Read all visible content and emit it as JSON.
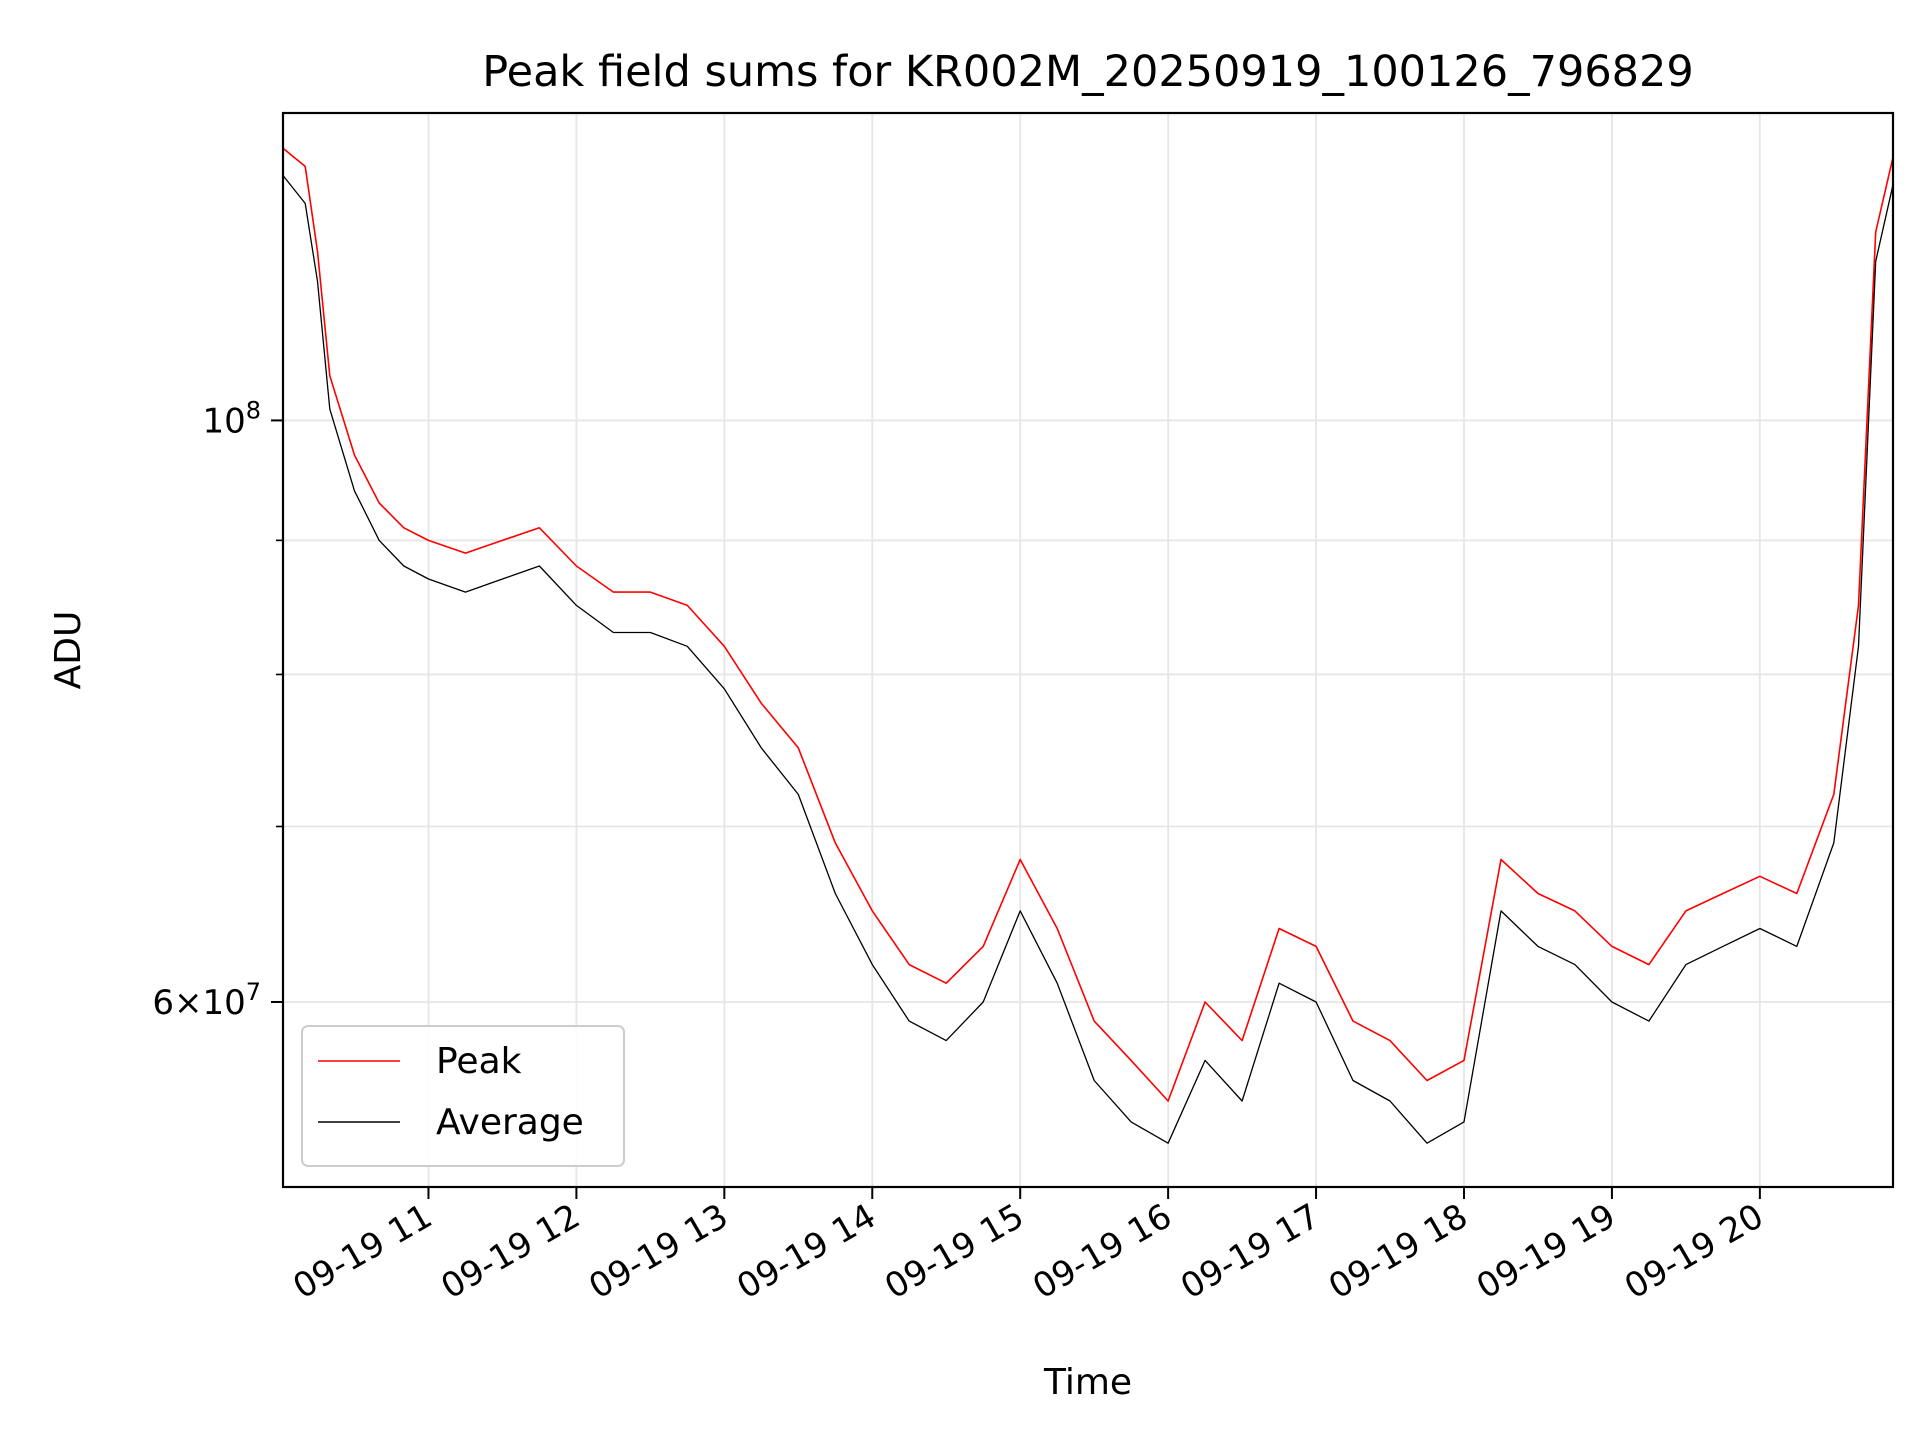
{
  "chart_data": {
    "type": "line",
    "title": "Peak field sums for KR002M_20250919_100126_796829",
    "xlabel": "Time",
    "ylabel": "ADU",
    "x_scale": "time",
    "y_scale": "log",
    "xlim": [
      "2025-09-19 10:01",
      "2025-09-19 20:54"
    ],
    "ylim": [
      51000000,
      131000000
    ],
    "x_ticks": [
      "2025-09-19 11:00",
      "2025-09-19 12:00",
      "2025-09-19 13:00",
      "2025-09-19 14:00",
      "2025-09-19 15:00",
      "2025-09-19 16:00",
      "2025-09-19 17:00",
      "2025-09-19 18:00",
      "2025-09-19 19:00",
      "2025-09-19 20:00"
    ],
    "x_tick_labels": [
      "09-19 11",
      "09-19 12",
      "09-19 13",
      "09-19 14",
      "09-19 15",
      "09-19 16",
      "09-19 17",
      "09-19 18",
      "09-19 19",
      "09-19 20"
    ],
    "y_major_ticks": [
      100000000,
      60000000
    ],
    "y_major_tick_labels": [
      "10^8",
      "6×10^7"
    ],
    "y_minor_ticks": [
      70000000,
      80000000,
      90000000
    ],
    "grid": true,
    "legend": {
      "position": "lower-left"
    },
    "series": [
      {
        "name": "Peak",
        "color": "#ff0000",
        "x": [
          "2025-09-19 10:01",
          "2025-09-19 10:10",
          "2025-09-19 10:15",
          "2025-09-19 10:20",
          "2025-09-19 10:30",
          "2025-09-19 10:40",
          "2025-09-19 10:50",
          "2025-09-19 11:00",
          "2025-09-19 11:15",
          "2025-09-19 11:30",
          "2025-09-19 11:45",
          "2025-09-19 12:00",
          "2025-09-19 12:15",
          "2025-09-19 12:30",
          "2025-09-19 12:45",
          "2025-09-19 13:00",
          "2025-09-19 13:15",
          "2025-09-19 13:30",
          "2025-09-19 13:45",
          "2025-09-19 14:00",
          "2025-09-19 14:15",
          "2025-09-19 14:30",
          "2025-09-19 14:45",
          "2025-09-19 15:00",
          "2025-09-19 15:15",
          "2025-09-19 15:30",
          "2025-09-19 15:45",
          "2025-09-19 16:00",
          "2025-09-19 16:15",
          "2025-09-19 16:30",
          "2025-09-19 16:45",
          "2025-09-19 17:00",
          "2025-09-19 17:15",
          "2025-09-19 17:30",
          "2025-09-19 17:45",
          "2025-09-19 18:00",
          "2025-09-19 18:15",
          "2025-09-19 18:30",
          "2025-09-19 18:45",
          "2025-09-19 19:00",
          "2025-09-19 19:15",
          "2025-09-19 19:30",
          "2025-09-19 19:45",
          "2025-09-19 20:00",
          "2025-09-19 20:15",
          "2025-09-19 20:30",
          "2025-09-19 20:40",
          "2025-09-19 20:47",
          "2025-09-19 20:54"
        ],
        "values": [
          127000000,
          125000000,
          116000000,
          104000000,
          97000000,
          93000000,
          91000000,
          90000000,
          89000000,
          90000000,
          91000000,
          88000000,
          86000000,
          86000000,
          85000000,
          82000000,
          78000000,
          75000000,
          69000000,
          65000000,
          62000000,
          61000000,
          63000000,
          68000000,
          64000000,
          59000000,
          57000000,
          55000000,
          60000000,
          58000000,
          64000000,
          63000000,
          59000000,
          58000000,
          56000000,
          57000000,
          68000000,
          66000000,
          65000000,
          63000000,
          62000000,
          65000000,
          66000000,
          67000000,
          66000000,
          72000000,
          85000000,
          118000000,
          126000000
        ]
      },
      {
        "name": "Average",
        "color": "#000000",
        "x": [
          "2025-09-19 10:01",
          "2025-09-19 10:10",
          "2025-09-19 10:15",
          "2025-09-19 10:20",
          "2025-09-19 10:30",
          "2025-09-19 10:40",
          "2025-09-19 10:50",
          "2025-09-19 11:00",
          "2025-09-19 11:15",
          "2025-09-19 11:30",
          "2025-09-19 11:45",
          "2025-09-19 12:00",
          "2025-09-19 12:15",
          "2025-09-19 12:30",
          "2025-09-19 12:45",
          "2025-09-19 13:00",
          "2025-09-19 13:15",
          "2025-09-19 13:30",
          "2025-09-19 13:45",
          "2025-09-19 14:00",
          "2025-09-19 14:15",
          "2025-09-19 14:30",
          "2025-09-19 14:45",
          "2025-09-19 15:00",
          "2025-09-19 15:15",
          "2025-09-19 15:30",
          "2025-09-19 15:45",
          "2025-09-19 16:00",
          "2025-09-19 16:15",
          "2025-09-19 16:30",
          "2025-09-19 16:45",
          "2025-09-19 17:00",
          "2025-09-19 17:15",
          "2025-09-19 17:30",
          "2025-09-19 17:45",
          "2025-09-19 18:00",
          "2025-09-19 18:15",
          "2025-09-19 18:30",
          "2025-09-19 18:45",
          "2025-09-19 19:00",
          "2025-09-19 19:15",
          "2025-09-19 19:30",
          "2025-09-19 19:45",
          "2025-09-19 20:00",
          "2025-09-19 20:15",
          "2025-09-19 20:30",
          "2025-09-19 20:40",
          "2025-09-19 20:47",
          "2025-09-19 20:54"
        ],
        "values": [
          124000000,
          121000000,
          113000000,
          101000000,
          94000000,
          90000000,
          88000000,
          87000000,
          86000000,
          87000000,
          88000000,
          85000000,
          83000000,
          83000000,
          82000000,
          79000000,
          75000000,
          72000000,
          66000000,
          62000000,
          59000000,
          58000000,
          60000000,
          65000000,
          61000000,
          56000000,
          54000000,
          53000000,
          57000000,
          55000000,
          61000000,
          60000000,
          56000000,
          55000000,
          53000000,
          54000000,
          65000000,
          63000000,
          62000000,
          60000000,
          59000000,
          62000000,
          63000000,
          64000000,
          63000000,
          69000000,
          82000000,
          115000000,
          123000000
        ]
      }
    ]
  }
}
